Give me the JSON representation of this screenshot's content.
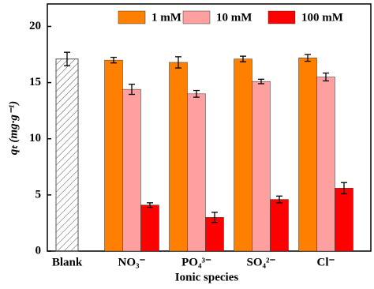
{
  "chart_data": {
    "type": "bar",
    "x_label": "Ionic species",
    "y_label": "qₜ (mg·g⁻¹)",
    "categories": [
      "Blank",
      "NO₃⁻",
      "PO₄³⁻",
      "SO₄²⁻",
      "Cl⁻"
    ],
    "blank": {
      "value": 17.1,
      "error": 0.6
    },
    "series": [
      {
        "name": "1 mM",
        "color": "#ff8000",
        "values": [
          null,
          17.0,
          16.8,
          17.1,
          17.2
        ],
        "errors": [
          null,
          0.25,
          0.5,
          0.25,
          0.3
        ]
      },
      {
        "name": "10 mM",
        "color": "#ffa0a0",
        "values": [
          null,
          14.4,
          14.0,
          15.1,
          15.5
        ],
        "errors": [
          null,
          0.45,
          0.3,
          0.2,
          0.35
        ]
      },
      {
        "name": "100 mM",
        "color": "#ff0000",
        "values": [
          null,
          4.1,
          3.0,
          4.6,
          5.6
        ],
        "errors": [
          null,
          0.2,
          0.45,
          0.3,
          0.5
        ]
      }
    ],
    "ylim": [
      0,
      22
    ],
    "yticks": [
      0,
      5,
      10,
      15,
      20
    ],
    "legend": "top"
  }
}
